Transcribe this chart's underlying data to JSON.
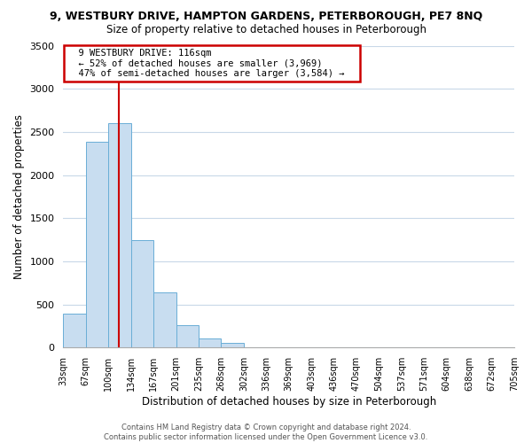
{
  "title": "9, WESTBURY DRIVE, HAMPTON GARDENS, PETERBOROUGH, PE7 8NQ",
  "subtitle": "Size of property relative to detached houses in Peterborough",
  "xlabel": "Distribution of detached houses by size in Peterborough",
  "ylabel": "Number of detached properties",
  "bar_color": "#c8ddf0",
  "bar_edge_color": "#6aaed6",
  "background_color": "#ffffff",
  "grid_color": "#c8d8e8",
  "vline_color": "#cc0000",
  "bin_labels": [
    "33sqm",
    "67sqm",
    "100sqm",
    "134sqm",
    "167sqm",
    "201sqm",
    "235sqm",
    "268sqm",
    "302sqm",
    "336sqm",
    "369sqm",
    "403sqm",
    "436sqm",
    "470sqm",
    "504sqm",
    "537sqm",
    "571sqm",
    "604sqm",
    "638sqm",
    "672sqm",
    "705sqm"
  ],
  "counts": [
    390,
    2390,
    2600,
    1250,
    640,
    260,
    105,
    55,
    0,
    0,
    0,
    0,
    0,
    0,
    0,
    0,
    0,
    0,
    0,
    0
  ],
  "vline_bin_index": 2.47,
  "ylim": [
    0,
    3500
  ],
  "yticks": [
    0,
    500,
    1000,
    1500,
    2000,
    2500,
    3000,
    3500
  ],
  "annotation_title": "9 WESTBURY DRIVE: 116sqm",
  "annotation_line1": "← 52% of detached houses are smaller (3,969)",
  "annotation_line2": "47% of semi-detached houses are larger (3,584) →",
  "annotation_box_color": "#ffffff",
  "annotation_box_edge_color": "#cc0000",
  "footer_line1": "Contains HM Land Registry data © Crown copyright and database right 2024.",
  "footer_line2": "Contains public sector information licensed under the Open Government Licence v3.0."
}
